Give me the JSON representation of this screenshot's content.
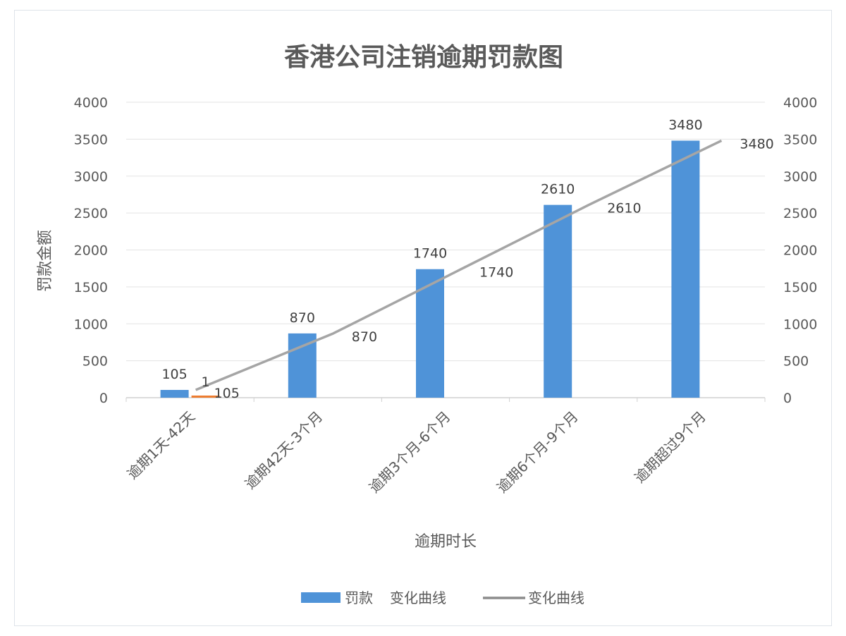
{
  "chart_data": {
    "type": "bar",
    "title": "香港公司注销逾期罚款图",
    "xlabel": "逾期时长",
    "ylabel": "罚款金额",
    "categories": [
      "逾期1天-42天",
      "逾期42天-3个月",
      "逾期3个月-6个月",
      "逾期6个月-9个月",
      "逾期超过9个月"
    ],
    "ylim": [
      0,
      4000
    ],
    "y2lim": [
      0,
      4000
    ],
    "y_ticks": [
      0,
      500,
      1000,
      1500,
      2000,
      2500,
      3000,
      3500,
      4000
    ],
    "y2_ticks": [
      0,
      500,
      1000,
      1500,
      2000,
      2500,
      3000,
      3500,
      4000
    ],
    "grid": true,
    "legend_position": "bottom",
    "series": [
      {
        "name": "罚款",
        "kind": "bar",
        "axis": "left",
        "color": "#4f93d8",
        "values": [
          105,
          870,
          1740,
          2610,
          3480
        ],
        "labels": [
          "105",
          "870",
          "1740",
          "2610",
          "3480"
        ]
      },
      {
        "name": "变化曲线",
        "kind": "bar",
        "axis": "left",
        "color": "#ed7d31",
        "values": [
          1,
          null,
          null,
          null,
          null
        ],
        "labels": [
          "1",
          "",
          "",
          "",
          ""
        ]
      },
      {
        "name": "变化曲线",
        "kind": "line",
        "axis": "right",
        "color": "#a5a5a5",
        "values": [
          105,
          870,
          1740,
          2610,
          3480
        ],
        "labels": [
          "105",
          "870",
          "1740",
          "2610",
          "3480"
        ]
      }
    ],
    "legend": [
      {
        "label": "罚款",
        "marker": "bar",
        "color": "#4f93d8"
      },
      {
        "label": "变化曲线",
        "marker": "none",
        "color": "#4f93d8"
      },
      {
        "label": "变化曲线",
        "marker": "line",
        "color": "#8c8c8c"
      }
    ]
  }
}
